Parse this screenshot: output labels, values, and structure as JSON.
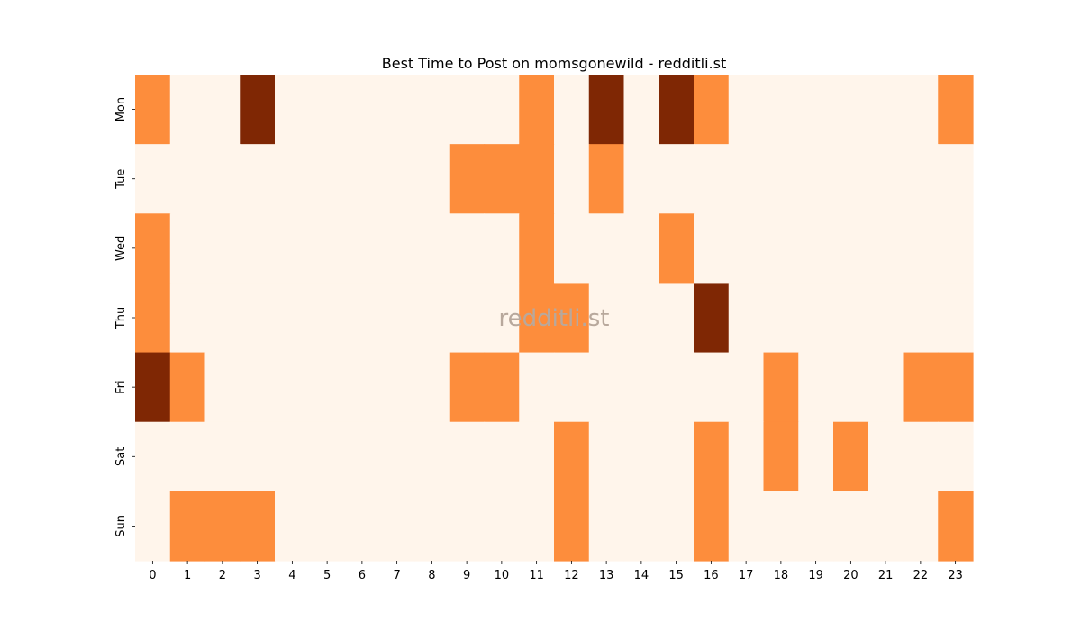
{
  "chart_data": {
    "type": "heatmap",
    "title": "Best Time to Post on momsgonewild - redditli.st",
    "watermark": "redditli.st",
    "x_labels": [
      "0",
      "1",
      "2",
      "3",
      "4",
      "5",
      "6",
      "7",
      "8",
      "9",
      "10",
      "11",
      "12",
      "13",
      "14",
      "15",
      "16",
      "17",
      "18",
      "19",
      "20",
      "21",
      "22",
      "23"
    ],
    "y_labels": [
      "Mon",
      "Tue",
      "Wed",
      "Thu",
      "Fri",
      "Sat",
      "Sun"
    ],
    "xlabel": "",
    "ylabel": "",
    "values": [
      [
        1,
        0,
        0,
        2,
        0,
        0,
        0,
        0,
        0,
        0,
        0,
        1,
        0,
        2,
        0,
        2,
        1,
        0,
        0,
        0,
        0,
        0,
        0,
        1
      ],
      [
        0,
        0,
        0,
        0,
        0,
        0,
        0,
        0,
        0,
        1,
        1,
        1,
        0,
        1,
        0,
        0,
        0,
        0,
        0,
        0,
        0,
        0,
        0,
        0
      ],
      [
        1,
        0,
        0,
        0,
        0,
        0,
        0,
        0,
        0,
        0,
        0,
        1,
        0,
        0,
        0,
        1,
        0,
        0,
        0,
        0,
        0,
        0,
        0,
        0
      ],
      [
        1,
        0,
        0,
        0,
        0,
        0,
        0,
        0,
        0,
        0,
        0,
        1,
        1,
        0,
        0,
        0,
        2,
        0,
        0,
        0,
        0,
        0,
        0,
        0
      ],
      [
        2,
        1,
        0,
        0,
        0,
        0,
        0,
        0,
        0,
        1,
        1,
        0,
        0,
        0,
        0,
        0,
        0,
        0,
        1,
        0,
        0,
        0,
        1,
        1
      ],
      [
        0,
        0,
        0,
        0,
        0,
        0,
        0,
        0,
        0,
        0,
        0,
        0,
        1,
        0,
        0,
        0,
        1,
        0,
        1,
        0,
        1,
        0,
        0,
        0
      ],
      [
        0,
        1,
        1,
        1,
        0,
        0,
        0,
        0,
        0,
        0,
        0,
        0,
        1,
        0,
        0,
        0,
        1,
        0,
        0,
        0,
        0,
        0,
        0,
        1
      ]
    ],
    "value_range": [
      0,
      2
    ],
    "colors": {
      "low": "#fff5eb",
      "mid": "#fd8d3c",
      "high": "#7f2704"
    },
    "grid": false,
    "legend": "none"
  }
}
